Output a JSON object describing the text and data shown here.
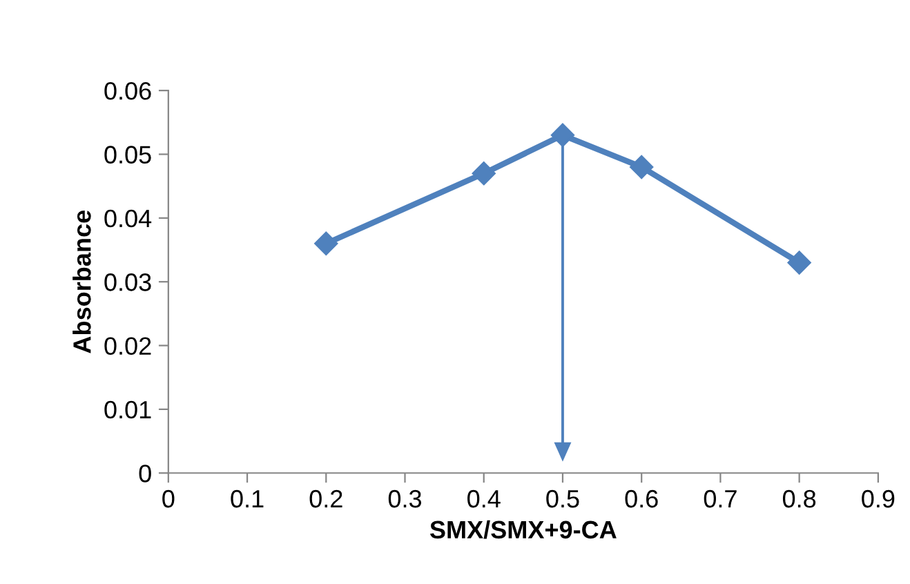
{
  "chart_data": {
    "type": "line",
    "xlabel": "SMX/SMX+9-CA",
    "ylabel": "Absorbance",
    "x": [
      0.2,
      0.4,
      0.5,
      0.6,
      0.8
    ],
    "series": [
      {
        "color": "#4f81bd",
        "values": [
          0.036,
          0.047,
          0.053,
          0.048,
          0.033
        ]
      }
    ],
    "xlim": [
      0,
      0.9
    ],
    "xticks": [
      0,
      0.1,
      0.2,
      0.3,
      0.4,
      0.5,
      0.6,
      0.7,
      0.8,
      0.9
    ],
    "ylim": [
      0,
      0.06
    ],
    "yticks": [
      0,
      0.01,
      0.02,
      0.03,
      0.04,
      0.05,
      0.06
    ],
    "grid": false,
    "legend": false,
    "marker": "diamond",
    "line_style": "solid"
  }
}
